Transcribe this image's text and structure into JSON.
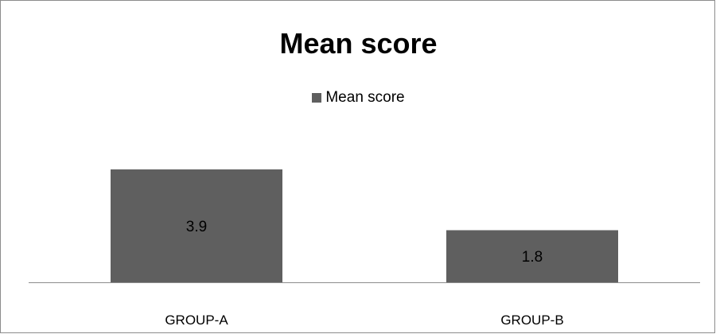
{
  "chart_data": {
    "type": "bar",
    "title": "Mean score",
    "categories": [
      "GROUP-A",
      "GROUP-B"
    ],
    "series": [
      {
        "name": "Mean score",
        "values": [
          3.9,
          1.8
        ],
        "color": "#5f5f5f"
      }
    ],
    "data_labels": [
      "3.9",
      "1.8"
    ],
    "ylim": [
      0,
      5
    ],
    "legend_position": "top-center",
    "grid": false,
    "axis_color": "#8c8c8c"
  }
}
